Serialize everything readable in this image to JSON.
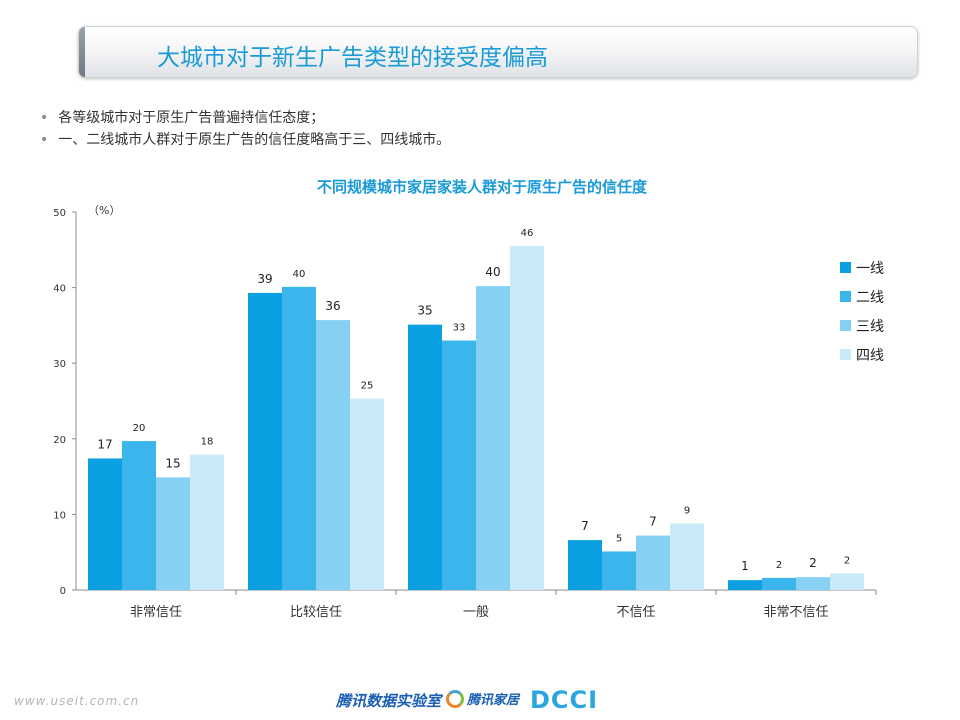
{
  "page": {
    "title": "大城市对于新生广告类型的接受度偏高",
    "bullets": [
      "各等级城市对于原生广告普遍持信任态度；",
      "一、二线城市人群对于原生广告的信任度略高于三、四线城市。"
    ]
  },
  "footer": {
    "url": "www.useit.com.cn",
    "lab": "腾讯数据实验室",
    "logo2": "腾讯家居",
    "dcci": "DCCI"
  },
  "colors": {
    "series": [
      "#0aa0e2",
      "#3ab6ec",
      "#86d0f4",
      "#c8eaf9"
    ],
    "title": "#1a9ad6"
  },
  "chart_data": {
    "type": "bar",
    "title": "不同规模城市家居家装人群对于原生广告的信任度",
    "unit_label": "（%）",
    "categories": [
      "非常信任",
      "比较信任",
      "一般",
      "不信任",
      "非常不信任"
    ],
    "series": [
      {
        "name": "一线",
        "values": [
          17,
          39,
          35,
          7,
          1
        ]
      },
      {
        "name": "二线",
        "values": [
          20,
          40,
          33,
          5,
          2
        ]
      },
      {
        "name": "三线",
        "values": [
          15,
          36,
          40,
          7,
          2
        ]
      },
      {
        "name": "四线",
        "values": [
          18,
          25,
          46,
          9,
          2
        ]
      }
    ],
    "bar_heights": [
      [
        17.4,
        39.3,
        35.1,
        6.6,
        1.3
      ],
      [
        19.7,
        40.1,
        33.0,
        5.1,
        1.6
      ],
      [
        14.9,
        35.7,
        40.2,
        7.2,
        1.7
      ],
      [
        17.9,
        25.3,
        45.5,
        8.8,
        2.2
      ]
    ],
    "ylim": [
      0,
      50
    ],
    "yticks": [
      0,
      10,
      20,
      30,
      40,
      50
    ],
    "grid": false,
    "legend_position": "right"
  }
}
